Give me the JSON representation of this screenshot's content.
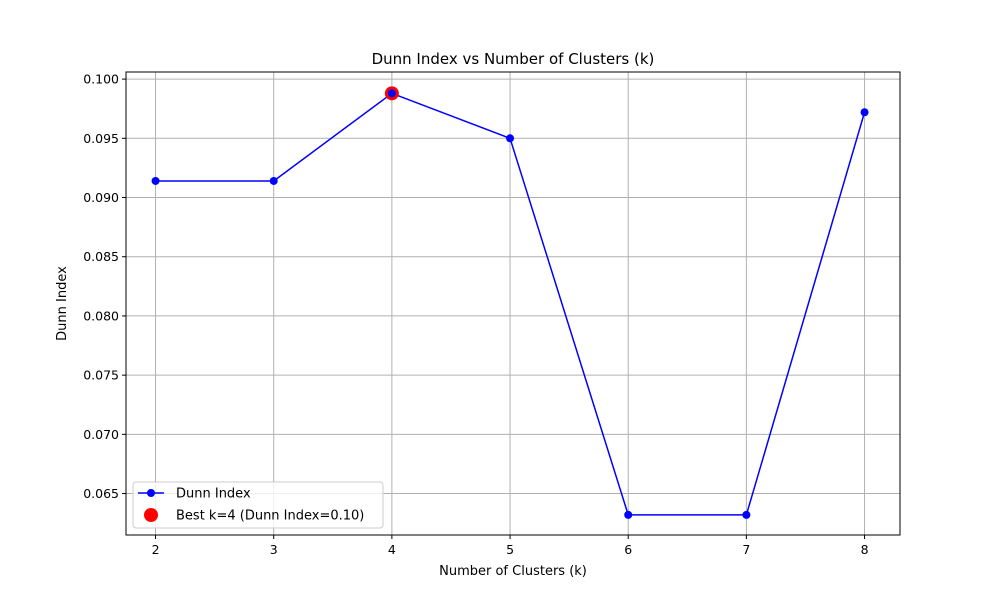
{
  "chart_data": {
    "type": "line",
    "title": "Dunn Index vs Number of Clusters (k)",
    "xlabel": "Number of Clusters (k)",
    "ylabel": "Dunn Index",
    "x": [
      2,
      3,
      4,
      5,
      6,
      7,
      8
    ],
    "xlim": [
      1.75,
      8.3
    ],
    "ylim": [
      0.0615,
      0.1006
    ],
    "xticks": [
      2,
      3,
      4,
      5,
      6,
      7,
      8
    ],
    "yticks": [
      0.065,
      0.07,
      0.075,
      0.08,
      0.085,
      0.09,
      0.095,
      0.1
    ],
    "ytick_labels": [
      "0.065",
      "0.070",
      "0.075",
      "0.080",
      "0.085",
      "0.090",
      "0.095",
      "0.100"
    ],
    "grid": true,
    "legend_position": "lower-left",
    "series": [
      {
        "name": "Dunn Index",
        "type": "line-with-markers",
        "color": "#0000ff",
        "values": [
          0.0914,
          0.0914,
          0.0988,
          0.095,
          0.0632,
          0.0632,
          0.0972
        ]
      }
    ],
    "highlight": {
      "label": "Best k=4 (Dunn Index=0.10)",
      "x": 4,
      "y": 0.0988,
      "color": "#ff0000"
    }
  }
}
